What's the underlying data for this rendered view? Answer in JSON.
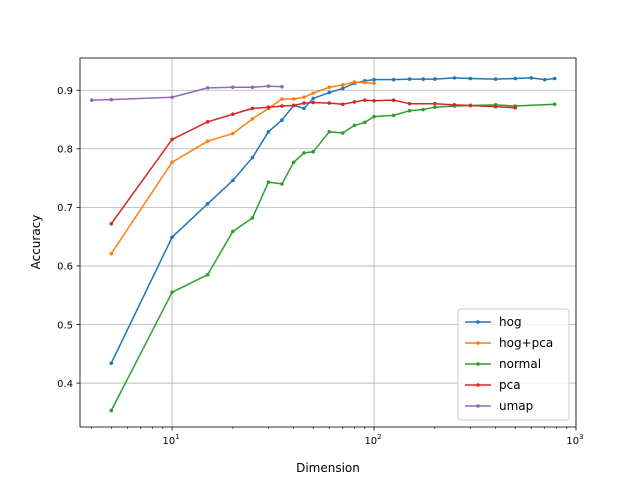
{
  "chart_data": {
    "type": "line",
    "title": "",
    "xlabel": "Dimension",
    "ylabel": "Accuracy",
    "xscale": "log",
    "xlim": [
      3.5,
      1000
    ],
    "ylim": [
      0.325,
      0.955
    ],
    "grid": true,
    "legend_position": "lower-right",
    "x_ticks": [
      {
        "value": 10,
        "base": "10",
        "exp": "1"
      },
      {
        "value": 100,
        "base": "10",
        "exp": "2"
      },
      {
        "value": 1000,
        "base": "10",
        "exp": "3"
      }
    ],
    "y_ticks": [
      {
        "value": 0.4,
        "label": "0.4"
      },
      {
        "value": 0.5,
        "label": "0.5"
      },
      {
        "value": 0.6,
        "label": "0.6"
      },
      {
        "value": 0.7,
        "label": "0.7"
      },
      {
        "value": 0.8,
        "label": "0.8"
      },
      {
        "value": 0.9,
        "label": "0.9"
      }
    ],
    "series": [
      {
        "name": "hog",
        "color": "#1f77b4",
        "points": [
          [
            5,
            0.434
          ],
          [
            10,
            0.649
          ],
          [
            15,
            0.706
          ],
          [
            20,
            0.746
          ],
          [
            25,
            0.785
          ],
          [
            30,
            0.829
          ],
          [
            35,
            0.849
          ],
          [
            40,
            0.874
          ],
          [
            45,
            0.869
          ],
          [
            50,
            0.886
          ],
          [
            60,
            0.896
          ],
          [
            70,
            0.903
          ],
          [
            80,
            0.912
          ],
          [
            90,
            0.916
          ],
          [
            100,
            0.918
          ],
          [
            125,
            0.918
          ],
          [
            150,
            0.919
          ],
          [
            175,
            0.919
          ],
          [
            200,
            0.919
          ],
          [
            250,
            0.921
          ],
          [
            300,
            0.92
          ],
          [
            400,
            0.919
          ],
          [
            500,
            0.92
          ],
          [
            600,
            0.921
          ],
          [
            700,
            0.918
          ],
          [
            784,
            0.92
          ]
        ]
      },
      {
        "name": "hog+pca",
        "color": "#ff7f0e",
        "points": [
          [
            5,
            0.621
          ],
          [
            10,
            0.777
          ],
          [
            15,
            0.813
          ],
          [
            20,
            0.826
          ],
          [
            25,
            0.851
          ],
          [
            30,
            0.869
          ],
          [
            35,
            0.885
          ],
          [
            40,
            0.885
          ],
          [
            45,
            0.888
          ],
          [
            50,
            0.895
          ],
          [
            60,
            0.905
          ],
          [
            70,
            0.909
          ],
          [
            80,
            0.914
          ],
          [
            90,
            0.913
          ],
          [
            100,
            0.912
          ]
        ]
      },
      {
        "name": "normal",
        "color": "#2ca02c",
        "points": [
          [
            5,
            0.353
          ],
          [
            10,
            0.555
          ],
          [
            15,
            0.585
          ],
          [
            20,
            0.659
          ],
          [
            25,
            0.682
          ],
          [
            30,
            0.743
          ],
          [
            35,
            0.74
          ],
          [
            40,
            0.777
          ],
          [
            45,
            0.793
          ],
          [
            50,
            0.795
          ],
          [
            60,
            0.829
          ],
          [
            70,
            0.827
          ],
          [
            80,
            0.84
          ],
          [
            90,
            0.845
          ],
          [
            100,
            0.855
          ],
          [
            125,
            0.857
          ],
          [
            150,
            0.865
          ],
          [
            175,
            0.867
          ],
          [
            200,
            0.871
          ],
          [
            250,
            0.873
          ],
          [
            300,
            0.874
          ],
          [
            400,
            0.875
          ],
          [
            500,
            0.873
          ],
          [
            784,
            0.876
          ]
        ]
      },
      {
        "name": "pca",
        "color": "#d62728",
        "points": [
          [
            5,
            0.672
          ],
          [
            10,
            0.816
          ],
          [
            15,
            0.846
          ],
          [
            20,
            0.859
          ],
          [
            25,
            0.869
          ],
          [
            30,
            0.871
          ],
          [
            35,
            0.873
          ],
          [
            40,
            0.874
          ],
          [
            45,
            0.878
          ],
          [
            50,
            0.879
          ],
          [
            60,
            0.878
          ],
          [
            70,
            0.876
          ],
          [
            80,
            0.88
          ],
          [
            90,
            0.883
          ],
          [
            100,
            0.882
          ],
          [
            125,
            0.883
          ],
          [
            150,
            0.877
          ],
          [
            200,
            0.877
          ],
          [
            250,
            0.875
          ],
          [
            300,
            0.874
          ],
          [
            400,
            0.872
          ],
          [
            500,
            0.87
          ]
        ]
      },
      {
        "name": "umap",
        "color": "#9467bd",
        "points": [
          [
            4,
            0.883
          ],
          [
            5,
            0.884
          ],
          [
            10,
            0.888
          ],
          [
            15,
            0.904
          ],
          [
            20,
            0.905
          ],
          [
            25,
            0.905
          ],
          [
            30,
            0.907
          ],
          [
            35,
            0.906
          ]
        ]
      }
    ]
  }
}
